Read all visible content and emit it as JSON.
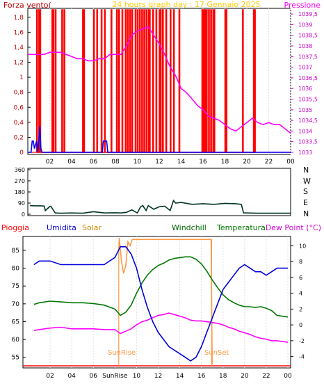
{
  "chart_data": [
    {
      "type": "line",
      "title": "24 hours graph day : 17 Gennaio 2025",
      "ylabel_left": "Forza vento(",
      "ylabel_right": "Pressione",
      "x_ticks": [
        "02",
        "04",
        "06",
        "08",
        "10",
        "12",
        "14",
        "16",
        "18",
        "20",
        "22",
        "00"
      ],
      "y_left_ticks": [
        "0",
        "0,2",
        "0,4",
        "0,6",
        "0,8",
        "1",
        "1,2",
        "1,4",
        "1,6",
        "1,8"
      ],
      "y_right_ticks": [
        "1033",
        "1033,5",
        "1034",
        "1034,5",
        "1035",
        "1035,5",
        "1036",
        "1036,5",
        "1037",
        "1037,5",
        "1038",
        "1038,5",
        "1039",
        "1039,5"
      ],
      "ylim_left": [
        0,
        1.9
      ],
      "ylim_right": [
        1033,
        1039.7
      ],
      "colors": {
        "gust": "#ff0000",
        "wind": "#0000ff",
        "pressure": "#ff00ff",
        "title": "#ffcc00",
        "left_axis": "#c00000"
      },
      "series": [
        {
          "name": "Pressione",
          "x": [
            0,
            0.5,
            1,
            1.5,
            2,
            2.5,
            3,
            3.5,
            4,
            4.5,
            5,
            5.5,
            6,
            6.5,
            7,
            7.5,
            8,
            8.5,
            9,
            9.5,
            10,
            10.5,
            11,
            11.5,
            12,
            12.5,
            13,
            13.5,
            14,
            14.5,
            15,
            15.5,
            16,
            16.5,
            17,
            17.5,
            18,
            18.5,
            19,
            19.5,
            20,
            20.5,
            21,
            21.5,
            22,
            22.5,
            23,
            23.5,
            24
          ],
          "values": [
            1037.6,
            1037.6,
            1037.6,
            1037.6,
            1037.7,
            1037.7,
            1037.7,
            1037.6,
            1037.5,
            1037.4,
            1037.4,
            1037.3,
            1037.3,
            1037.4,
            1037.4,
            1037.6,
            1037.6,
            1037.6,
            1038.0,
            1038.5,
            1038.7,
            1038.8,
            1038.9,
            1038.5,
            1038.1,
            1037.6,
            1037.0,
            1036.6,
            1036.0,
            1035.8,
            1035.5,
            1035.2,
            1035.0,
            1034.7,
            1034.6,
            1034.5,
            1034.3,
            1034.1,
            1034.0,
            1034.2,
            1034.4,
            1034.6,
            1034.4,
            1034.3,
            1034.4,
            1034.3,
            1034.3,
            1034.1,
            1033.9
          ]
        }
      ]
    },
    {
      "type": "line",
      "title": "",
      "y_ticks": [
        "0",
        "90",
        "180",
        "270",
        "360"
      ],
      "ylim": [
        0,
        360
      ],
      "direction_labels": [
        "N",
        "W",
        "S",
        "E",
        "N"
      ],
      "x_ticks": [],
      "colors": {
        "line": "#003322"
      },
      "series": [
        {
          "name": "",
          "x": [
            0.2,
            0.6,
            1.2,
            1.5,
            1.6,
            2.0,
            2.1,
            2.5,
            3.0,
            4.0,
            5.0,
            6.0,
            7.0,
            8.0,
            8.5,
            9.0,
            9.5,
            10.0,
            10.3,
            10.5,
            10.8,
            11.0,
            11.5,
            12.0,
            12.5,
            13.0,
            13.3,
            13.5,
            14.0,
            15.0,
            16.0,
            17.0,
            18.0,
            19.0,
            19.5,
            19.7,
            20.0,
            21.0,
            22.0,
            23.0,
            24.0
          ],
          "values": [
            70,
            68,
            68,
            66,
            30,
            62,
            64,
            10,
            8,
            10,
            8,
            20,
            10,
            12,
            10,
            15,
            35,
            10,
            60,
            70,
            30,
            70,
            40,
            60,
            65,
            30,
            110,
            90,
            95,
            80,
            85,
            80,
            88,
            85,
            80,
            10,
            10,
            8,
            8,
            8,
            8
          ]
        }
      ]
    },
    {
      "type": "line",
      "title": "",
      "labels": {
        "pioggia": "Pioggia",
        "umidita": "Umidita",
        "solar": "Solar",
        "windchill": "Windchill",
        "temperatura": "Temperatura",
        "dewpoint": "Dew Point (°C)"
      },
      "annotations": [
        "SunRise",
        "SunSet"
      ],
      "x_ticks": [
        "02",
        "04",
        "06",
        "SunRise",
        "10",
        "12",
        "14",
        "16",
        "18",
        "20",
        "22",
        "00"
      ],
      "y_left_ticks": [
        "55",
        "60",
        "65",
        "70",
        "75",
        "80",
        "85"
      ],
      "y_right_ticks": [
        "-4",
        "-2",
        "0",
        "2",
        "4",
        "6",
        "8",
        "10"
      ],
      "ylim_left": [
        53,
        88.5
      ],
      "ylim_right": [
        -5,
        11
      ],
      "colors": {
        "umidita": "#0000dd",
        "temperatura": "#007700",
        "dewpoint": "#ff00ff",
        "solar": "#ff9944",
        "pioggia": "#ff0000",
        "windchill": "#006600"
      },
      "series": [
        {
          "name": "Umidita",
          "x": [
            0.5,
            1,
            2,
            3,
            4,
            5,
            6,
            7,
            8,
            8.5,
            9,
            9.5,
            10,
            10.5,
            11,
            11.5,
            12,
            12.5,
            13,
            13.5,
            14,
            14.5,
            15,
            15.5,
            16,
            16.5,
            17,
            17.5,
            18,
            18.5,
            19,
            19.5,
            20,
            20.5,
            21,
            21.5,
            22,
            22.5,
            23,
            24
          ],
          "values": [
            81,
            82,
            82,
            81,
            81,
            81,
            81,
            81,
            83,
            86,
            86,
            84,
            80,
            74,
            69,
            65,
            62,
            60,
            58,
            57,
            56,
            55,
            54,
            55,
            58,
            62,
            66,
            70,
            74,
            76,
            78,
            80,
            81,
            80,
            79,
            79,
            78,
            79,
            80,
            80
          ]
        },
        {
          "name": "Temperatura",
          "x": [
            0.5,
            1,
            2,
            3,
            4,
            5,
            6,
            7,
            8,
            8.5,
            9,
            9.5,
            10,
            10.5,
            11,
            11.5,
            12,
            12.5,
            13,
            13.5,
            14,
            14.5,
            15,
            15.5,
            16,
            16.5,
            17,
            17.5,
            18,
            18.5,
            19,
            19.5,
            20,
            20.5,
            21,
            21.5,
            22,
            22.5,
            23,
            24
          ],
          "values": [
            2.6,
            2.8,
            3.0,
            2.9,
            2.8,
            2.8,
            2.7,
            2.5,
            2.0,
            1.2,
            1.6,
            2.5,
            4.0,
            5.3,
            6.3,
            7.0,
            7.5,
            7.8,
            8.2,
            8.4,
            8.5,
            8.6,
            8.6,
            8.3,
            7.7,
            6.8,
            5.7,
            4.7,
            3.8,
            3.2,
            2.8,
            2.5,
            2.3,
            2.3,
            2.2,
            2.3,
            2.1,
            1.8,
            1.2,
            1.0
          ]
        },
        {
          "name": "Dew Point",
          "x": [
            0.5,
            1,
            2,
            3,
            4,
            5,
            6,
            7,
            8,
            8.5,
            9,
            9.5,
            10,
            10.5,
            11,
            11.5,
            12,
            12.5,
            13,
            13.5,
            14,
            14.5,
            15,
            15.5,
            16,
            16.5,
            17,
            17.5,
            18,
            18.5,
            19,
            19.5,
            20,
            20.5,
            21,
            21.5,
            22,
            22.5,
            23,
            24
          ],
          "values": [
            -0.7,
            -0.6,
            -0.4,
            -0.3,
            -0.5,
            -0.5,
            -0.5,
            -0.6,
            -0.6,
            -1.1,
            -0.8,
            -0.5,
            0.0,
            0.4,
            0.6,
            0.9,
            1.2,
            1.3,
            1.5,
            1.3,
            1.1,
            0.9,
            0.6,
            0.5,
            0.5,
            0.4,
            0.3,
            0.2,
            0.0,
            -0.3,
            -0.5,
            -0.8,
            -1.0,
            -1.2,
            -1.5,
            -1.7,
            -1.8,
            -2.0,
            -2.0,
            -2.2
          ]
        },
        {
          "name": "Solar",
          "x": [
            8.35,
            8.4,
            8.6,
            8.8,
            9.0,
            9.2,
            9.4,
            9.6,
            16.9,
            17.0
          ],
          "values": [
            9.5,
            11.0,
            8.0,
            6.5,
            7.5,
            10.5,
            10.0,
            10.8,
            10.8,
            -5.0
          ]
        }
      ]
    }
  ]
}
